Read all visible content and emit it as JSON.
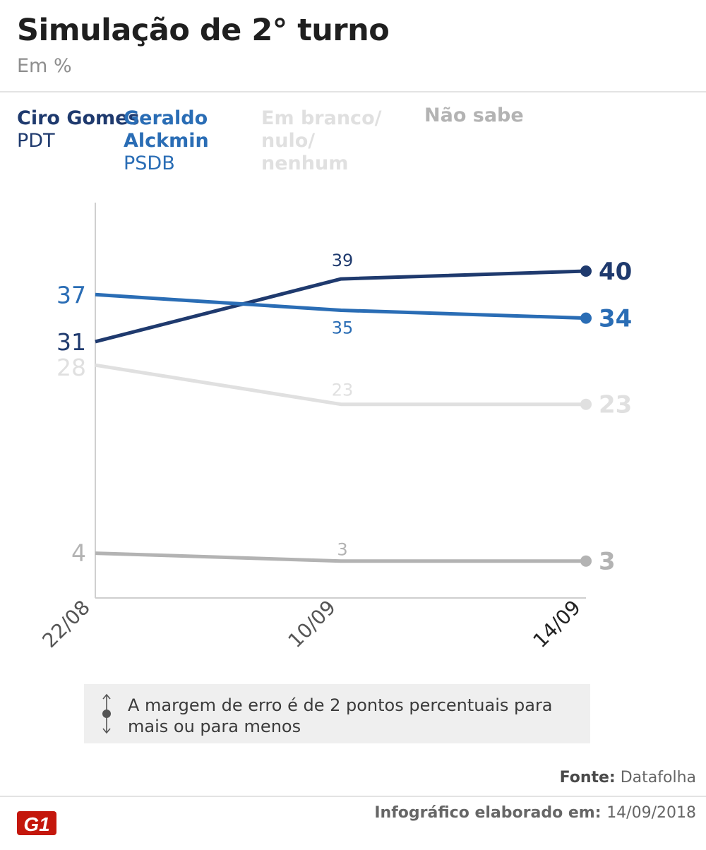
{
  "header": {
    "title": "Simulação de 2° turno",
    "subtitle": "Em %"
  },
  "legend": [
    {
      "name": "Ciro Gomes",
      "party": "PDT",
      "color": "#1f3a6e"
    },
    {
      "name": "Geraldo Alckmin",
      "party": "PSDB",
      "color": "#2a6db5"
    },
    {
      "name": "Em branco/ nulo/ nenhum",
      "party": "",
      "color": "#e0e0e0"
    },
    {
      "name": "Não sabe",
      "party": "",
      "color": "#b3b3b3"
    }
  ],
  "chart_data": {
    "type": "line",
    "categories": [
      "22/08",
      "10/09",
      "14/09"
    ],
    "ylim": [
      0,
      45
    ],
    "series": [
      {
        "name": "Ciro Gomes",
        "values": [
          31,
          39,
          40
        ],
        "color": "#1f3a6e"
      },
      {
        "name": "Geraldo Alckmin",
        "values": [
          37,
          35,
          34
        ],
        "color": "#2a6db5"
      },
      {
        "name": "Em branco/ nulo/ nenhum",
        "values": [
          28,
          23,
          23
        ],
        "color": "#e0e0e0"
      },
      {
        "name": "Não sabe",
        "values": [
          4,
          3,
          3
        ],
        "color": "#b3b3b3"
      }
    ],
    "last_tick_color": "#222222",
    "tick_color": "#555555"
  },
  "note": {
    "text": "A margem de erro é de 2 pontos percentuais para mais ou para menos"
  },
  "footer": {
    "source_label": "Fonte:",
    "source_value": "Datafolha",
    "date_label": "Infográfico elaborado em:",
    "date_value": "14/09/2018",
    "logo_text": "G1"
  }
}
